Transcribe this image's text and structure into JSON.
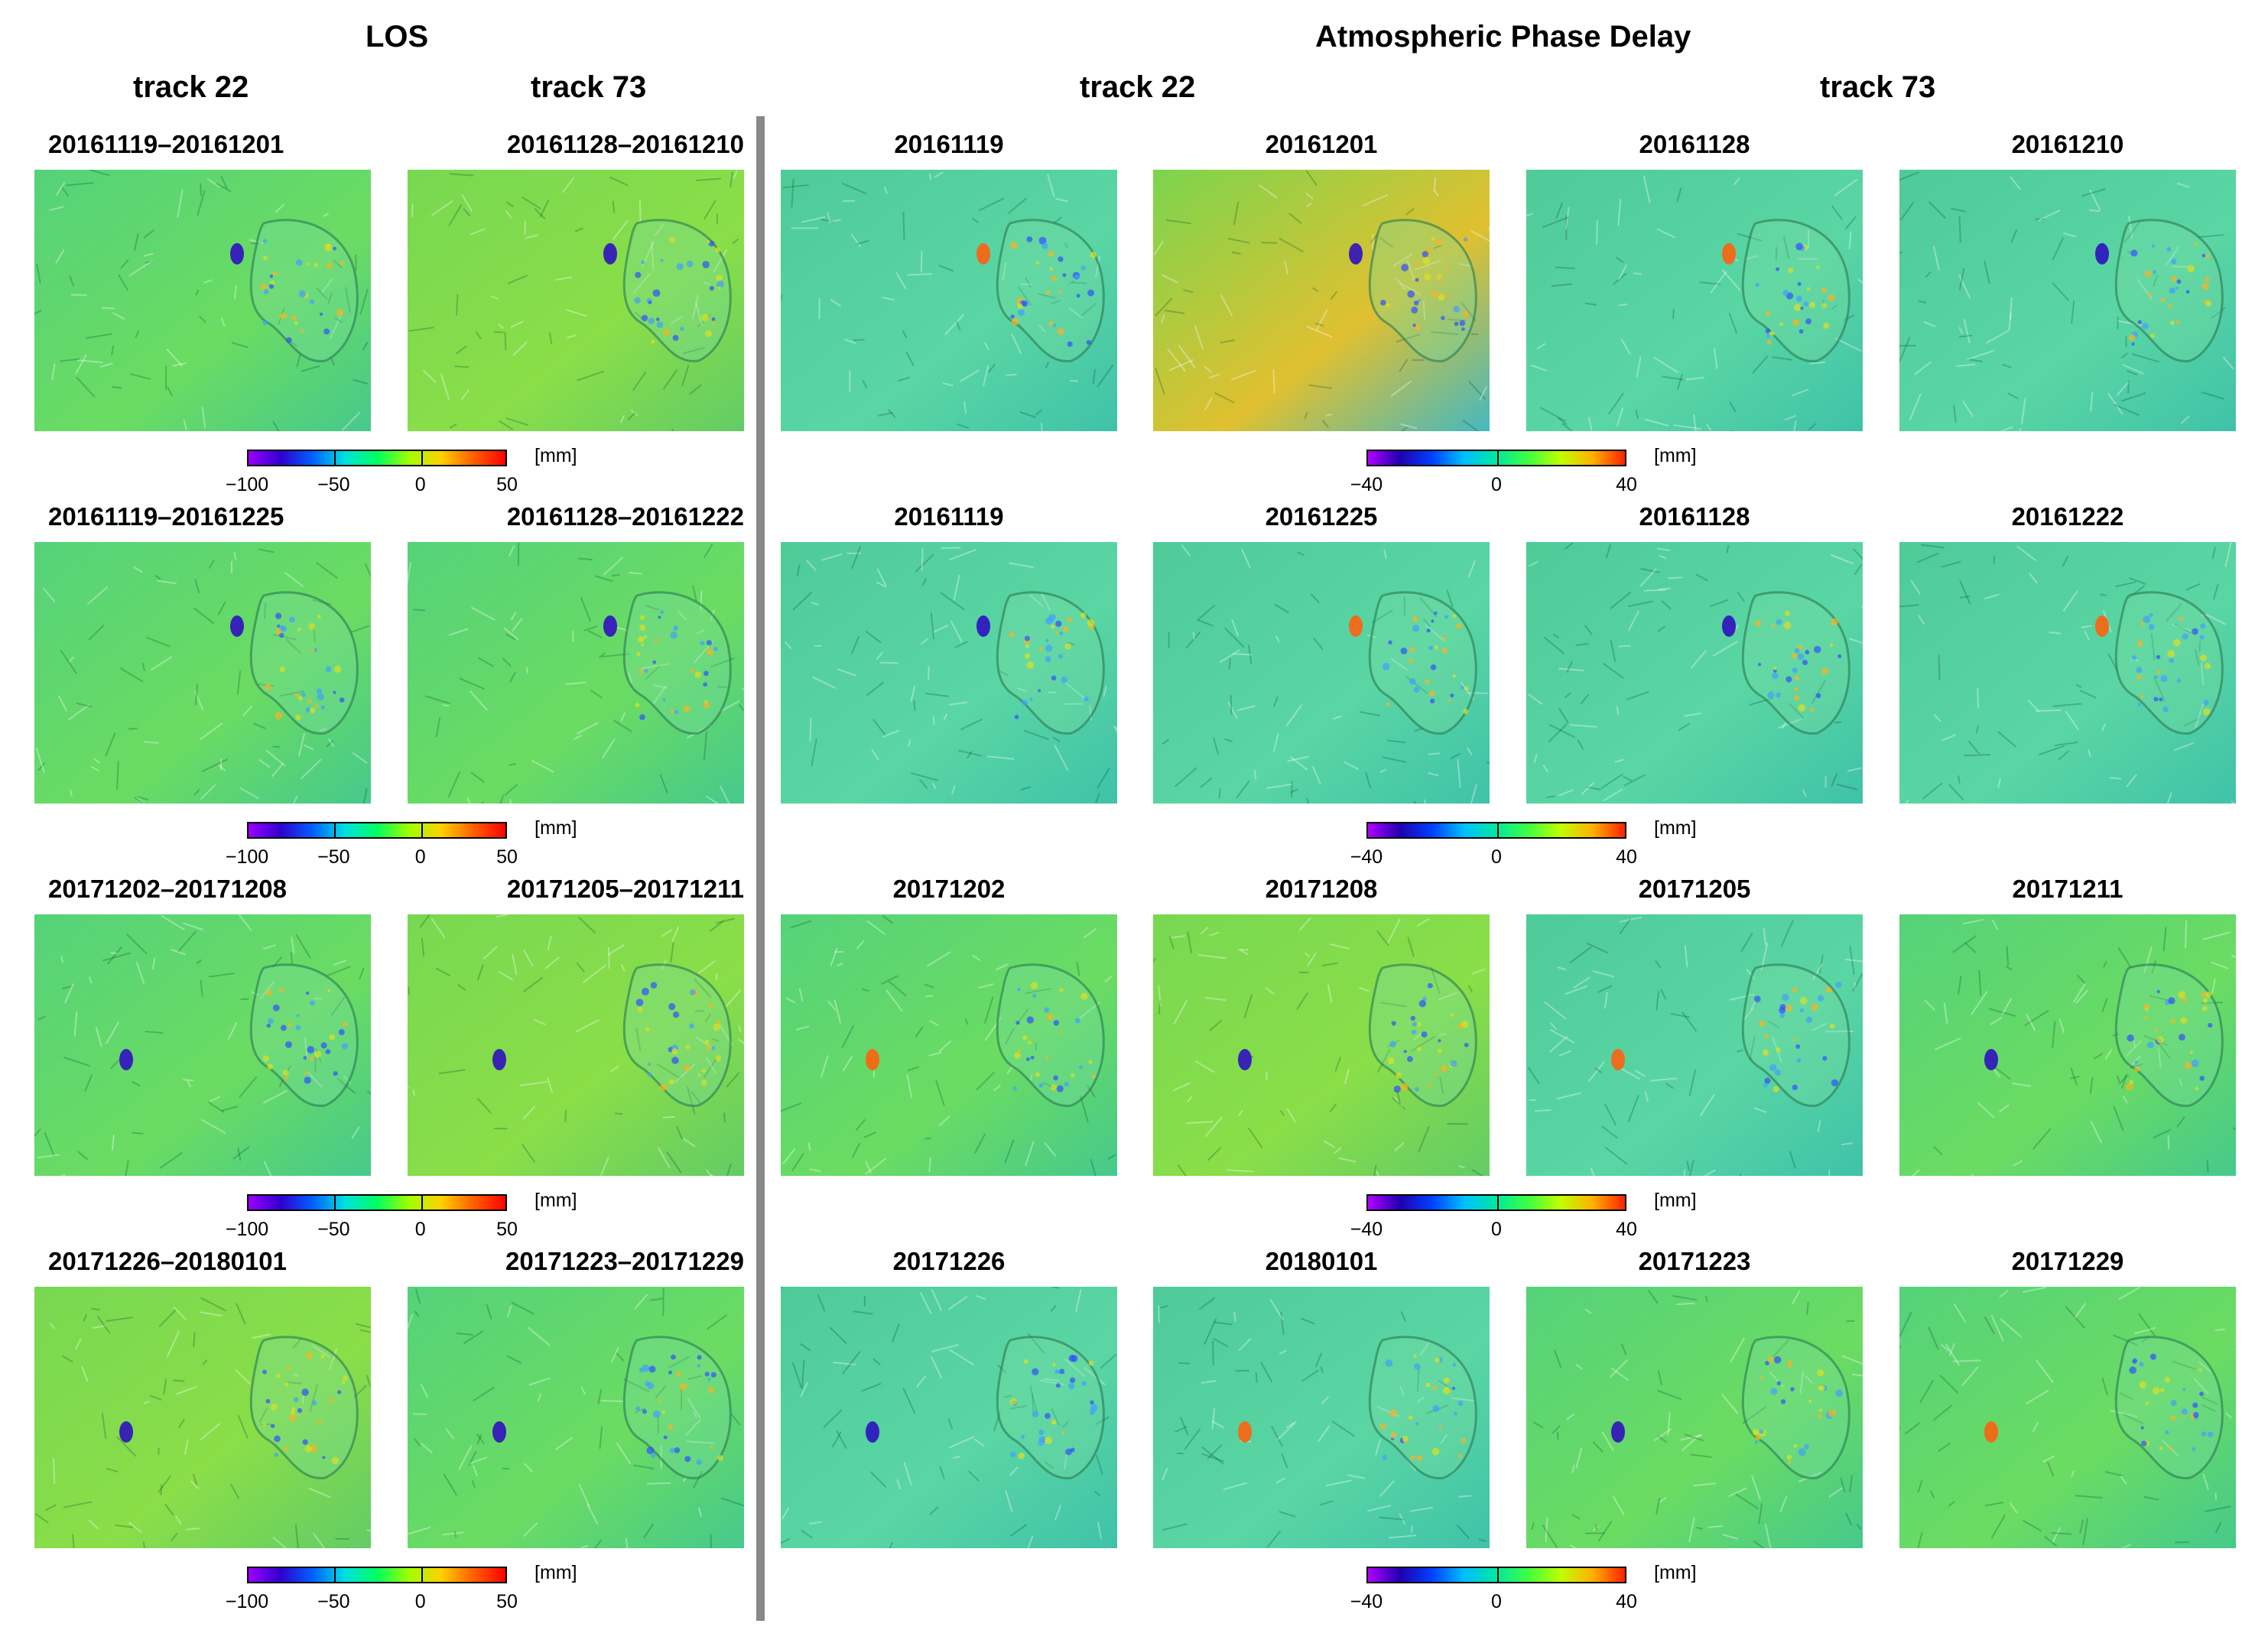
{
  "headers": {
    "los": "LOS",
    "apd": "Atmospheric Phase Delay",
    "los_track22": "track 22",
    "los_track73": "track 73",
    "apd_track22": "track 22",
    "apd_track73": "track 73"
  },
  "rows": [
    {
      "labels": [
        "20161119–20161201",
        "20161128–20161210",
        "20161119",
        "20161201",
        "20161128",
        "20161210"
      ],
      "los_colorbar": {
        "ticks": [
          "−100",
          "−50",
          "0",
          "50"
        ],
        "unit": "[mm]"
      },
      "apd_colorbar": {
        "ticks": [
          "−40",
          "0",
          "40"
        ],
        "unit": "[mm]"
      }
    },
    {
      "labels": [
        "20161119–20161225",
        "20161128–20161222",
        "20161119",
        "20161225",
        "20161128",
        "20161222"
      ],
      "los_colorbar": {
        "ticks": [
          "−100",
          "−50",
          "0",
          "50"
        ],
        "unit": "[mm]"
      },
      "apd_colorbar": {
        "ticks": [
          "−40",
          "0",
          "40"
        ],
        "unit": "[mm]"
      }
    },
    {
      "labels": [
        "20171202–20171208",
        "20171205–20171211",
        "20171202",
        "20171208",
        "20171205",
        "20171211"
      ],
      "los_colorbar": {
        "ticks": [
          "−100",
          "−50",
          "0",
          "50"
        ],
        "unit": "[mm]"
      },
      "apd_colorbar": {
        "ticks": [
          "−40",
          "0",
          "40"
        ],
        "unit": "[mm]"
      }
    },
    {
      "labels": [
        "20171226–20180101",
        "20171223–20171229",
        "20171226",
        "20180101",
        "20171223",
        "20171229"
      ],
      "los_colorbar": {
        "ticks": [
          "−100",
          "−50",
          "0",
          "50"
        ],
        "unit": "[mm]"
      },
      "apd_colorbar": {
        "ticks": [
          "−40",
          "0",
          "40"
        ],
        "unit": "[mm]"
      }
    }
  ],
  "colors": {
    "los_scale": [
      "#9a00ff",
      "#3000d0",
      "#0060ff",
      "#00e0e0",
      "#00ff60",
      "#a0ff00",
      "#ffd000",
      "#ff6000",
      "#ff0000"
    ],
    "apd_scale": [
      "#b000ff",
      "#2000b0",
      "#0040ff",
      "#00c0ff",
      "#00e8a0",
      "#40ff40",
      "#c0ff00",
      "#ffb000",
      "#ff2000"
    ],
    "panel_bg": [
      "#4fd07a",
      "#62d86c",
      "#4ec88a",
      "#57d4a0",
      "#7cd85a",
      "#48cc94"
    ]
  },
  "panel_tones": [
    [
      "a",
      "b",
      "c",
      "e",
      "c",
      "c"
    ],
    [
      "a",
      "a",
      "c",
      "c",
      "c",
      "c"
    ],
    [
      "a",
      "b",
      "a",
      "b",
      "c",
      "a"
    ],
    [
      "b",
      "a",
      "c",
      "c",
      "a",
      "a"
    ]
  ]
}
